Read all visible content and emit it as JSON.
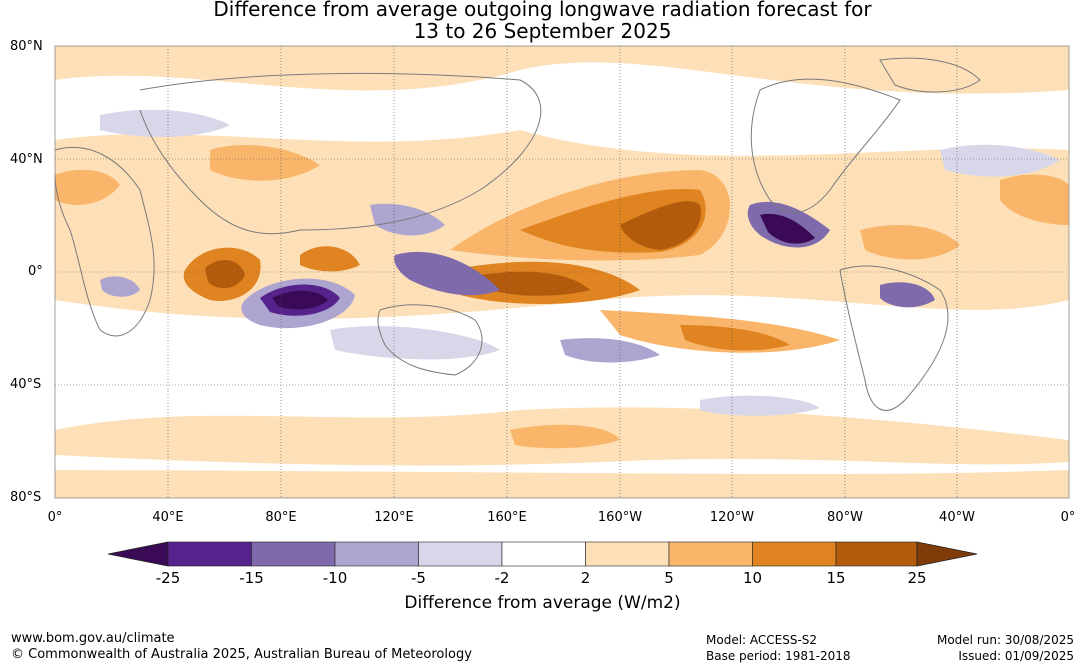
{
  "title": {
    "line1": "Difference from average outgoing longwave radiation forecast for",
    "line2": "13 to 26 September 2025"
  },
  "map": {
    "lat_labels": [
      "80°N",
      "40°N",
      "0°",
      "40°S",
      "80°S"
    ],
    "lon_labels": [
      "0°",
      "40°E",
      "80°E",
      "120°E",
      "160°E",
      "160°W",
      "120°W",
      "80°W",
      "40°W",
      "0°"
    ],
    "gridlines": true,
    "coastlines": true
  },
  "colorbar": {
    "title": "Difference from average (W/m2)",
    "labels": [
      "-25",
      "-15",
      "-10",
      "-5",
      "-2",
      "2",
      "5",
      "10",
      "15",
      "25"
    ],
    "colors": [
      "#3b0a56",
      "#56238c",
      "#7f6aac",
      "#ada5d0",
      "#d8d7ea",
      "#ffffff",
      "#fde0b8",
      "#f9b66a",
      "#e08421",
      "#b35b0d",
      "#7f3b08"
    ]
  },
  "footer": {
    "url": "www.bom.gov.au/climate",
    "copyright": "© Commonwealth of Australia 2025, Australian Bureau of Meteorology",
    "model": "Model: ACCESS-S2",
    "base_period": "Base period: 1981-2018",
    "model_run": "Model run: 30/08/2025",
    "issued": "Issued: 01/09/2025"
  }
}
